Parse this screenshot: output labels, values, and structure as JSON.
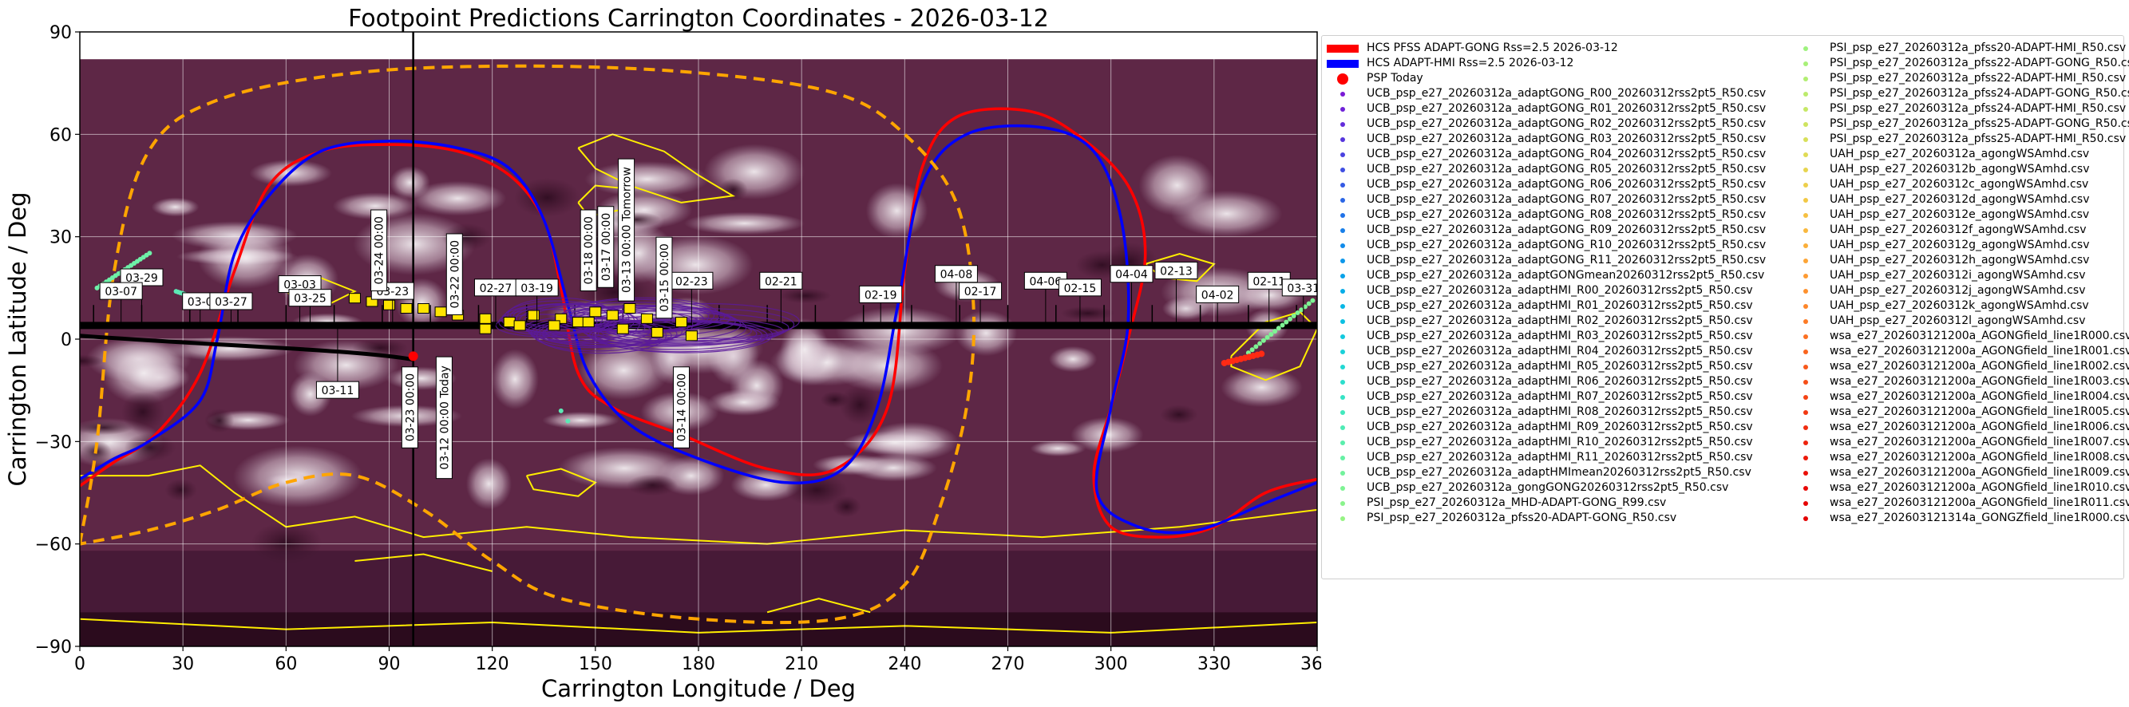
{
  "chart_data": {
    "type": "scatter",
    "title": "Footpoint Predictions Carrington Coordinates - 2026-03-12",
    "xlabel": "Carrington Longitude / Deg",
    "ylabel": "Carrington Latitude / Deg",
    "xlim": [
      0,
      360
    ],
    "ylim": [
      -90,
      90
    ],
    "xticks": [
      0,
      30,
      60,
      90,
      120,
      150,
      180,
      210,
      240,
      270,
      300,
      330,
      360
    ],
    "yticks": [
      -90,
      -60,
      -30,
      0,
      30,
      60,
      90
    ],
    "grid": true,
    "legend_position": "right",
    "background": "EUV synoptic map (purple/white)",
    "today_marker_lon": 97,
    "hcs_curves": [
      {
        "name": "HCS PFSS ADAPT-GONG Rss=2.5 2026-03-12",
        "color": "#ff0000",
        "points": [
          [
            0,
            -43
          ],
          [
            10,
            -36
          ],
          [
            22,
            -28
          ],
          [
            35,
            -10
          ],
          [
            45,
            20
          ],
          [
            55,
            45
          ],
          [
            70,
            55
          ],
          [
            90,
            57
          ],
          [
            110,
            55
          ],
          [
            125,
            48
          ],
          [
            135,
            35
          ],
          [
            140,
            15
          ],
          [
            145,
            -10
          ],
          [
            155,
            -20
          ],
          [
            175,
            -28
          ],
          [
            200,
            -38
          ],
          [
            220,
            -38
          ],
          [
            235,
            -20
          ],
          [
            240,
            20
          ],
          [
            245,
            50
          ],
          [
            255,
            65
          ],
          [
            275,
            67
          ],
          [
            290,
            60
          ],
          [
            305,
            45
          ],
          [
            310,
            25
          ],
          [
            305,
            0
          ],
          [
            300,
            -20
          ],
          [
            295,
            -40
          ],
          [
            300,
            -55
          ],
          [
            315,
            -58
          ],
          [
            330,
            -55
          ],
          [
            345,
            -45
          ],
          [
            360,
            -41
          ]
        ]
      },
      {
        "name": "HCS ADAPT-HMI Rss=2.5 2026-03-12",
        "color": "#0000ff",
        "points": [
          [
            0,
            -41
          ],
          [
            10,
            -35
          ],
          [
            20,
            -30
          ],
          [
            35,
            -18
          ],
          [
            40,
            0
          ],
          [
            45,
            25
          ],
          [
            55,
            42
          ],
          [
            70,
            55
          ],
          [
            90,
            58
          ],
          [
            110,
            56
          ],
          [
            125,
            50
          ],
          [
            135,
            35
          ],
          [
            142,
            10
          ],
          [
            148,
            -10
          ],
          [
            160,
            -25
          ],
          [
            180,
            -35
          ],
          [
            205,
            -42
          ],
          [
            222,
            -38
          ],
          [
            232,
            -20
          ],
          [
            238,
            10
          ],
          [
            245,
            45
          ],
          [
            258,
            60
          ],
          [
            280,
            62
          ],
          [
            295,
            55
          ],
          [
            303,
            35
          ],
          [
            305,
            5
          ],
          [
            300,
            -20
          ],
          [
            296,
            -45
          ],
          [
            308,
            -55
          ],
          [
            325,
            -56
          ],
          [
            345,
            -48
          ],
          [
            360,
            -42
          ]
        ]
      },
      {
        "name": "dashed orange",
        "color": "#ffa500",
        "points": [
          [
            0,
            -60
          ],
          [
            5,
            -30
          ],
          [
            10,
            20
          ],
          [
            20,
            55
          ],
          [
            40,
            70
          ],
          [
            80,
            78
          ],
          [
            130,
            80
          ],
          [
            180,
            78
          ],
          [
            220,
            72
          ],
          [
            240,
            60
          ],
          [
            255,
            40
          ],
          [
            260,
            10
          ],
          [
            258,
            -20
          ],
          [
            250,
            -50
          ],
          [
            240,
            -72
          ],
          [
            220,
            -82
          ],
          [
            180,
            -82
          ],
          [
            140,
            -76
          ],
          [
            120,
            -65
          ],
          [
            100,
            -50
          ],
          [
            80,
            -40
          ],
          [
            60,
            -42
          ],
          [
            40,
            -50
          ],
          [
            20,
            -56
          ],
          [
            0,
            -60
          ]
        ]
      }
    ],
    "psp_trajectory": {
      "name": "PSP trajectory",
      "lat_range": [
        3,
        4
      ]
    },
    "date_labels": [
      {
        "text": "03-29",
        "lon": 18,
        "lat": 18
      },
      {
        "text": "03-07",
        "lon": 12,
        "lat": 14
      },
      {
        "text": "03-03",
        "lon": 64,
        "lat": 16
      },
      {
        "text": "03-25",
        "lon": 67,
        "lat": 12
      },
      {
        "text": "03-0",
        "lon": 35,
        "lat": 11
      },
      {
        "text": "03-27",
        "lon": 44,
        "lat": 11
      },
      {
        "text": "03-23",
        "lon": 91,
        "lat": 14
      },
      {
        "text": "02-27",
        "lon": 121,
        "lat": 15
      },
      {
        "text": "03-19",
        "lon": 133,
        "lat": 15
      },
      {
        "text": "02-23",
        "lon": 178,
        "lat": 17
      },
      {
        "text": "02-21",
        "lon": 204,
        "lat": 17
      },
      {
        "text": "02-19",
        "lon": 233,
        "lat": 13
      },
      {
        "text": "04-08",
        "lon": 255,
        "lat": 19
      },
      {
        "text": "02-17",
        "lon": 262,
        "lat": 14
      },
      {
        "text": "04-06",
        "lon": 281,
        "lat": 17
      },
      {
        "text": "02-15",
        "lon": 291,
        "lat": 15
      },
      {
        "text": "04-04",
        "lon": 306,
        "lat": 19
      },
      {
        "text": "02-13",
        "lon": 319,
        "lat": 20
      },
      {
        "text": "04-02",
        "lon": 331,
        "lat": 13
      },
      {
        "text": "02-11",
        "lon": 346,
        "lat": 17
      },
      {
        "text": "03-31",
        "lon": 356,
        "lat": 15
      },
      {
        "text": "03-11",
        "lon": 75,
        "lat": -15
      }
    ],
    "date_labels_vertical": [
      {
        "text": "03-24 00:00",
        "lon": 87,
        "lat": 26
      },
      {
        "text": "03-22 00:00",
        "lon": 109,
        "lat": 19
      },
      {
        "text": "03-18 00:00",
        "lon": 148,
        "lat": 26
      },
      {
        "text": "03-17 00:00",
        "lon": 153,
        "lat": 27
      },
      {
        "text": "03-13 00:00 Tomorrow",
        "lon": 159,
        "lat": 32
      },
      {
        "text": "03-15 00:00",
        "lon": 170,
        "lat": 18
      },
      {
        "text": "03-23 00:00",
        "lon": 96,
        "lat": -20
      },
      {
        "text": "03-12 00:00 Today",
        "lon": 106,
        "lat": -23
      },
      {
        "text": "03-14 00:00",
        "lon": 175,
        "lat": -20
      }
    ],
    "legend_col1": [
      {
        "label": "HCS PFSS ADAPT-GONG Rss=2.5 2026-03-12",
        "marker": "bar",
        "color": "#ff0000"
      },
      {
        "label": "HCS ADAPT-HMI Rss=2.5 2026-03-12",
        "marker": "bar",
        "color": "#0000ff"
      },
      {
        "label": "PSP Today",
        "marker": "bigdot",
        "color": "#ff0000"
      },
      {
        "label": "UCB_psp_e27_20260312a_adaptGONG_R00_20260312rss2pt5_R50.csv",
        "marker": "dot",
        "color": "#7a1ad6"
      },
      {
        "label": "UCB_psp_e27_20260312a_adaptGONG_R01_20260312rss2pt5_R50.csv",
        "marker": "dot",
        "color": "#6f22d8"
      },
      {
        "label": "UCB_psp_e27_20260312a_adaptGONG_R02_20260312rss2pt5_R50.csv",
        "marker": "dot",
        "color": "#632cdb"
      },
      {
        "label": "UCB_psp_e27_20260312a_adaptGONG_R03_20260312rss2pt5_R50.csv",
        "marker": "dot",
        "color": "#5636dd"
      },
      {
        "label": "UCB_psp_e27_20260312a_adaptGONG_R04_20260312rss2pt5_R50.csv",
        "marker": "dot",
        "color": "#4a42e0"
      },
      {
        "label": "UCB_psp_e27_20260312a_adaptGONG_R05_20260312rss2pt5_R50.csv",
        "marker": "dot",
        "color": "#3f4ee2"
      },
      {
        "label": "UCB_psp_e27_20260312a_adaptGONG_R06_20260312rss2pt5_R50.csv",
        "marker": "dot",
        "color": "#345ae4"
      },
      {
        "label": "UCB_psp_e27_20260312a_adaptGONG_R07_20260312rss2pt5_R50.csv",
        "marker": "dot",
        "color": "#2a66e6"
      },
      {
        "label": "UCB_psp_e27_20260312a_adaptGONG_R08_20260312rss2pt5_R50.csv",
        "marker": "dot",
        "color": "#2072e8"
      },
      {
        "label": "UCB_psp_e27_20260312a_adaptGONG_R09_20260312rss2pt5_R50.csv",
        "marker": "dot",
        "color": "#187fe9"
      },
      {
        "label": "UCB_psp_e27_20260312a_adaptGONG_R10_20260312rss2pt5_R50.csv",
        "marker": "dot",
        "color": "#118bea"
      },
      {
        "label": "UCB_psp_e27_20260312a_adaptGONG_R11_20260312rss2pt5_R50.csv",
        "marker": "dot",
        "color": "#0c97ea"
      },
      {
        "label": "UCB_psp_e27_20260312a_adaptGONGmean20260312rss2pt5_R50.csv",
        "marker": "dot",
        "color": "#08a2e9"
      },
      {
        "label": "UCB_psp_e27_20260312a_adaptHMI_R00_20260312rss2pt5_R50.csv",
        "marker": "dot",
        "color": "#06ade8"
      },
      {
        "label": "UCB_psp_e27_20260312a_adaptHMI_R01_20260312rss2pt5_R50.csv",
        "marker": "dot",
        "color": "#08b7e5"
      },
      {
        "label": "UCB_psp_e27_20260312a_adaptHMI_R02_20260312rss2pt5_R50.csv",
        "marker": "dot",
        "color": "#0cc0e2"
      },
      {
        "label": "UCB_psp_e27_20260312a_adaptHMI_R03_20260312rss2pt5_R50.csv",
        "marker": "dot",
        "color": "#12c9de"
      },
      {
        "label": "UCB_psp_e27_20260312a_adaptHMI_R04_20260312rss2pt5_R50.csv",
        "marker": "dot",
        "color": "#1ad1d9"
      },
      {
        "label": "UCB_psp_e27_20260312a_adaptHMI_R05_20260312rss2pt5_R50.csv",
        "marker": "dot",
        "color": "#22d8d3"
      },
      {
        "label": "UCB_psp_e27_20260312a_adaptHMI_R06_20260312rss2pt5_R50.csv",
        "marker": "dot",
        "color": "#2cdecc"
      },
      {
        "label": "UCB_psp_e27_20260312a_adaptHMI_R07_20260312rss2pt5_R50.csv",
        "marker": "dot",
        "color": "#36e3c5"
      },
      {
        "label": "UCB_psp_e27_20260312a_adaptHMI_R08_20260312rss2pt5_R50.csv",
        "marker": "dot",
        "color": "#42e8bd"
      },
      {
        "label": "UCB_psp_e27_20260312a_adaptHMI_R09_20260312rss2pt5_R50.csv",
        "marker": "dot",
        "color": "#4eebb5"
      },
      {
        "label": "UCB_psp_e27_20260312a_adaptHMI_R10_20260312rss2pt5_R50.csv",
        "marker": "dot",
        "color": "#5aeeac"
      },
      {
        "label": "UCB_psp_e27_20260312a_adaptHMI_R11_20260312rss2pt5_R50.csv",
        "marker": "dot",
        "color": "#66f0a4"
      },
      {
        "label": "UCB_psp_e27_20260312a_adaptHMImean20260312rss2pt5_R50.csv",
        "marker": "dot",
        "color": "#72f29c"
      },
      {
        "label": "UCB_psp_e27_20260312a_gongGONG20260312rss2pt5_R50.csv",
        "marker": "dot",
        "color": "#7ef394"
      },
      {
        "label": "PSI_psp_e27_20260312a_MHD-ADAPT-GONG_R99.csv",
        "marker": "dot",
        "color": "#8af38c"
      },
      {
        "label": "PSI_psp_e27_20260312a_pfss20-ADAPT-GONG_R50.csv",
        "marker": "dot",
        "color": "#96f384"
      }
    ],
    "legend_col2": [
      {
        "label": "PSI_psp_e27_20260312a_pfss20-ADAPT-HMI_R50.csv",
        "marker": "dot",
        "color": "#9ef27e"
      },
      {
        "label": "PSI_psp_e27_20260312a_pfss22-ADAPT-GONG_R50.csv",
        "marker": "dot",
        "color": "#a8f078"
      },
      {
        "label": "PSI_psp_e27_20260312a_pfss22-ADAPT-HMI_R50.csv",
        "marker": "dot",
        "color": "#b2ee72"
      },
      {
        "label": "PSI_psp_e27_20260312a_pfss24-ADAPT-GONG_R50.csv",
        "marker": "dot",
        "color": "#bceb6c"
      },
      {
        "label": "PSI_psp_e27_20260312a_pfss24-ADAPT-HMI_R50.csv",
        "marker": "dot",
        "color": "#c6e866"
      },
      {
        "label": "PSI_psp_e27_20260312a_pfss25-ADAPT-GONG_R50.csv",
        "marker": "dot",
        "color": "#cfe460"
      },
      {
        "label": "PSI_psp_e27_20260312a_pfss25-ADAPT-HMI_R50.csv",
        "marker": "dot",
        "color": "#d8e05a"
      },
      {
        "label": "UAH_psp_e27_20260312a_agongWSAmhd.csv",
        "marker": "dot",
        "color": "#e0db55"
      },
      {
        "label": "UAH_psp_e27_20260312b_agongWSAmhd.csv",
        "marker": "dot",
        "color": "#e7d550"
      },
      {
        "label": "UAH_psp_e27_20260312c_agongWSAmhd.csv",
        "marker": "dot",
        "color": "#edcf4b"
      },
      {
        "label": "UAH_psp_e27_20260312d_agongWSAmhd.csv",
        "marker": "dot",
        "color": "#f2c846"
      },
      {
        "label": "UAH_psp_e27_20260312e_agongWSAmhd.csv",
        "marker": "dot",
        "color": "#f6c042"
      },
      {
        "label": "UAH_psp_e27_20260312f_agongWSAmhd.csv",
        "marker": "dot",
        "color": "#f9b83e"
      },
      {
        "label": "UAH_psp_e27_20260312g_agongWSAmhd.csv",
        "marker": "dot",
        "color": "#fbaf3a"
      },
      {
        "label": "UAH_psp_e27_20260312h_agongWSAmhd.csv",
        "marker": "dot",
        "color": "#fda536"
      },
      {
        "label": "UAH_psp_e27_20260312i_agongWSAmhd.csv",
        "marker": "dot",
        "color": "#fe9b32"
      },
      {
        "label": "UAH_psp_e27_20260312j_agongWSAmhd.csv",
        "marker": "dot",
        "color": "#fe912e"
      },
      {
        "label": "UAH_psp_e27_20260312k_agongWSAmhd.csv",
        "marker": "dot",
        "color": "#fe862a"
      },
      {
        "label": "UAH_psp_e27_20260312l_agongWSAmhd.csv",
        "marker": "dot",
        "color": "#fd7b26"
      },
      {
        "label": "wsa_e27_202603121200a_AGONGfield_line1R000.csv",
        "marker": "dot",
        "color": "#fc7022"
      },
      {
        "label": "wsa_e27_202603121200a_AGONGfield_line1R001.csv",
        "marker": "dot",
        "color": "#fa651e"
      },
      {
        "label": "wsa_e27_202603121200a_AGONGfield_line1R002.csv",
        "marker": "dot",
        "color": "#f8591b"
      },
      {
        "label": "wsa_e27_202603121200a_AGONGfield_line1R003.csv",
        "marker": "dot",
        "color": "#f64e18"
      },
      {
        "label": "wsa_e27_202603121200a_AGONGfield_line1R004.csv",
        "marker": "dot",
        "color": "#f44315"
      },
      {
        "label": "wsa_e27_202603121200a_AGONGfield_line1R005.csv",
        "marker": "dot",
        "color": "#f23812"
      },
      {
        "label": "wsa_e27_202603121200a_AGONGfield_line1R006.csv",
        "marker": "dot",
        "color": "#f02d10"
      },
      {
        "label": "wsa_e27_202603121200a_AGONGfield_line1R007.csv",
        "marker": "dot",
        "color": "#ee230d"
      },
      {
        "label": "wsa_e27_202603121200a_AGONGfield_line1R008.csv",
        "marker": "dot",
        "color": "#ec190a"
      },
      {
        "label": "wsa_e27_202603121200a_AGONGfield_line1R009.csv",
        "marker": "dot",
        "color": "#ea1008"
      },
      {
        "label": "wsa_e27_202603121200a_AGONGfield_line1R010.csv",
        "marker": "dot",
        "color": "#e80806"
      },
      {
        "label": "wsa_e27_202603121200a_AGONGfield_line1R011.csv",
        "marker": "dot",
        "color": "#e60404"
      },
      {
        "label": "wsa_e27_202603121314a_GONGZfield_line1R000.csv",
        "marker": "dot",
        "color": "#e40202"
      }
    ]
  }
}
